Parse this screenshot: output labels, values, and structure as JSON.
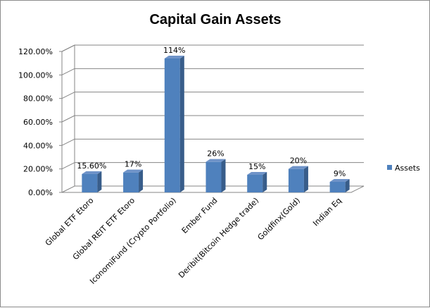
{
  "chart_data": {
    "type": "bar",
    "title": "Capital Gain Assets",
    "categories": [
      "Global ETF Etoro",
      "Global REIT ETF Etoro",
      "IconomiFund (Crypto Portfolio)",
      "Ember Fund",
      "Deribit(Bitcoin Hedge trade)",
      "Goldfinx(Gold)",
      "Indian Eq"
    ],
    "series": [
      {
        "name": "Assets",
        "values": [
          0.156,
          0.17,
          1.14,
          0.26,
          0.15,
          0.2,
          0.09
        ],
        "data_labels": [
          "15.60%",
          "17%",
          "114%",
          "26%",
          "15%",
          "20%",
          "9%"
        ],
        "color": "#4f81bd"
      }
    ],
    "y_ticks": [
      "0.00%",
      "20.00%",
      "40.00%",
      "60.00%",
      "80.00%",
      "100.00%",
      "120.00%"
    ],
    "ylim": [
      0,
      1.2
    ],
    "grid": true,
    "legend_position": "right",
    "xlabel": "",
    "ylabel": ""
  }
}
